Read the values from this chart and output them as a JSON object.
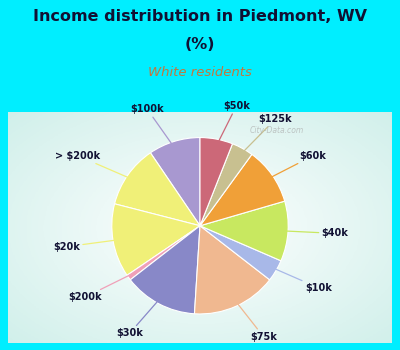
{
  "title_line1": "Income distribution in Piedmont, WV",
  "title_line2": "(%)",
  "subtitle": "White residents",
  "title_color": "#111133",
  "subtitle_color": "#c07840",
  "bg_cyan": "#00eeff",
  "watermark": "City-Data.com",
  "labels": [
    "$100k",
    "> $200k",
    "$20k",
    "$200k",
    "$30k",
    "$75k",
    "$10k",
    "$40k",
    "$60k",
    "$125k",
    "$50k"
  ],
  "sizes": [
    9.5,
    11.5,
    13.5,
    1.0,
    13.5,
    15.5,
    4.0,
    11.0,
    10.5,
    4.0,
    6.0
  ],
  "colors": [
    "#a898d0",
    "#f0f078",
    "#f0f078",
    "#f0a0b8",
    "#8888c8",
    "#f0b890",
    "#a8b8e8",
    "#c8e860",
    "#f0a038",
    "#c8c090",
    "#cc6878"
  ],
  "startangle": 90
}
